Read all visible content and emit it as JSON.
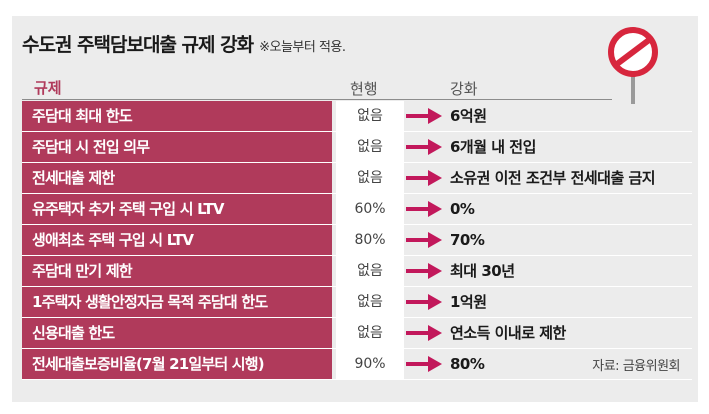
{
  "title": "수도권 주택담보대출 규제 강화",
  "subtitle": "※오늘부터 적용.",
  "headers": {
    "rule": "규제",
    "current": "현행",
    "new": "강화"
  },
  "rows": [
    {
      "rule": "주담대 최대 한도",
      "current": "없음",
      "new": "6억원"
    },
    {
      "rule": "주담대 시 전입 의무",
      "current": "없음",
      "new": "6개월 내 전입"
    },
    {
      "rule": "전세대출 제한",
      "current": "없음",
      "new": "소유권 이전 조건부 전세대출 금지"
    },
    {
      "rule": "유주택자 추가 주택 구입 시 LTV",
      "current": "60%",
      "new": "0%"
    },
    {
      "rule": "생애최초 주택 구입 시 LTV",
      "current": "80%",
      "new": "70%"
    },
    {
      "rule": "주담대 만기 제한",
      "current": "없음",
      "new": "최대 30년"
    },
    {
      "rule": "1주택자 생활안정자금 목적 주담대 한도",
      "current": "없음",
      "new": "1억원"
    },
    {
      "rule": "신용대출 한도",
      "current": "없음",
      "new": "연소득 이내로 제한"
    },
    {
      "rule": "전세대출보증비율(7월 21일부터 시행)",
      "current": "90%",
      "new": "80%"
    }
  ],
  "source": "자료: 금융위원회",
  "colors": {
    "accent": "#b03a5b",
    "arrow": "#c2185b",
    "sign_red": "#d7263d",
    "background": "#ececec"
  },
  "icons": {
    "arrow": "right-arrow-icon",
    "sign": "no-entry-sign-icon"
  }
}
